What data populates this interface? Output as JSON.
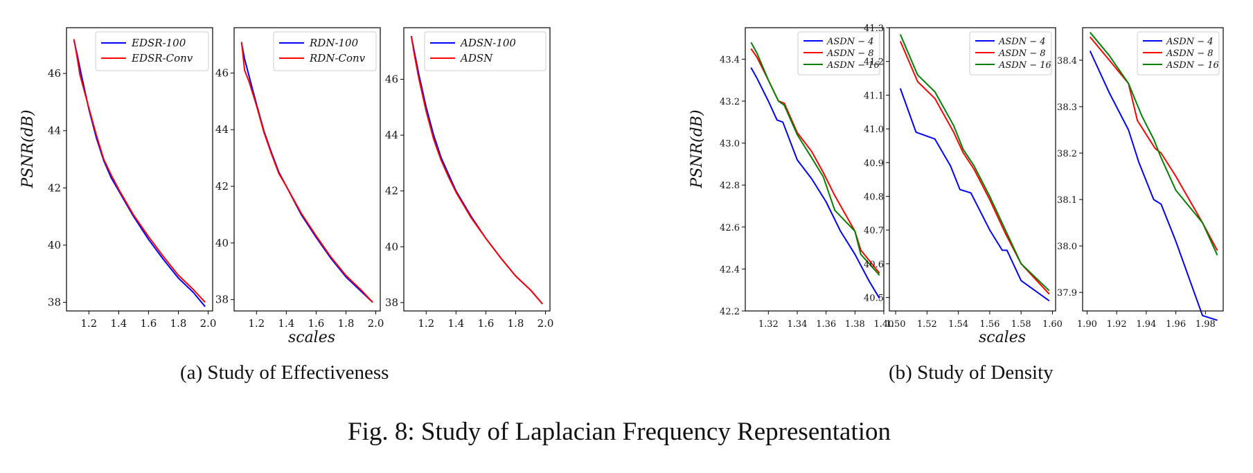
{
  "figure": {
    "caption": "Fig. 8: Study of Laplacian Frequency Representation",
    "subcaption_a": "(a) Study of Effectiveness",
    "subcaption_b": "(b) Study of Density",
    "ylabel_a": "PSNR(dB)",
    "ylabel_b": "PSNR(dB)",
    "xlabel_a": "scales",
    "xlabel_b": "scales"
  },
  "chart_data": [
    {
      "type": "line",
      "group": "a",
      "panel": 1,
      "xlim": [
        1.05,
        2.03
      ],
      "ylim": [
        37.7,
        47.6
      ],
      "xticks": [
        1.2,
        1.4,
        1.6,
        1.8,
        2.0
      ],
      "xtick_labels": [
        "1.2",
        "1.4",
        "1.6",
        "1.8",
        "2.0"
      ],
      "yticks": [
        38,
        40,
        42,
        44,
        46
      ],
      "ytick_labels": [
        "38",
        "40",
        "42",
        "44",
        "46"
      ],
      "legend_position": "top-right",
      "grid": false,
      "series": [
        {
          "name": "EDSR-100",
          "color": "#0000ff",
          "x": [
            1.1,
            1.12,
            1.15,
            1.2,
            1.25,
            1.3,
            1.35,
            1.4,
            1.5,
            1.6,
            1.7,
            1.8,
            1.9,
            1.98
          ],
          "y": [
            47.15,
            46.7,
            45.95,
            44.75,
            43.75,
            42.95,
            42.35,
            41.9,
            41.0,
            40.2,
            39.5,
            38.85,
            38.35,
            37.85
          ]
        },
        {
          "name": "EDSR-Conv",
          "color": "#ff0000",
          "x": [
            1.1,
            1.12,
            1.14,
            1.2,
            1.25,
            1.3,
            1.35,
            1.4,
            1.5,
            1.6,
            1.7,
            1.8,
            1.9,
            1.98
          ],
          "y": [
            47.2,
            46.6,
            45.95,
            44.8,
            43.85,
            43.0,
            42.45,
            41.95,
            41.05,
            40.3,
            39.6,
            38.95,
            38.45,
            38.0
          ]
        }
      ]
    },
    {
      "type": "line",
      "group": "a",
      "panel": 2,
      "xlim": [
        1.05,
        2.03
      ],
      "ylim": [
        37.6,
        47.6
      ],
      "xticks": [
        1.2,
        1.4,
        1.6,
        1.8,
        2.0
      ],
      "xtick_labels": [
        "1.2",
        "1.4",
        "1.6",
        "1.8",
        "2.0"
      ],
      "yticks": [
        38,
        40,
        42,
        44,
        46
      ],
      "ytick_labels": [
        "38",
        "40",
        "42",
        "44",
        "46"
      ],
      "legend_position": "top-right",
      "grid": false,
      "series": [
        {
          "name": "RDN-100",
          "color": "#0000ff",
          "x": [
            1.1,
            1.12,
            1.15,
            1.2,
            1.25,
            1.3,
            1.35,
            1.4,
            1.5,
            1.6,
            1.7,
            1.8,
            1.9,
            1.98
          ],
          "y": [
            47.05,
            46.5,
            45.9,
            44.9,
            43.95,
            43.2,
            42.5,
            42.0,
            41.0,
            40.2,
            39.45,
            38.8,
            38.3,
            37.9
          ]
        },
        {
          "name": "RDN-Conv",
          "color": "#ff0000",
          "x": [
            1.1,
            1.12,
            1.15,
            1.2,
            1.25,
            1.3,
            1.35,
            1.4,
            1.5,
            1.6,
            1.7,
            1.8,
            1.9,
            1.98
          ],
          "y": [
            47.1,
            46.1,
            45.7,
            44.85,
            43.9,
            43.15,
            42.45,
            42.0,
            41.05,
            40.25,
            39.5,
            38.85,
            38.35,
            37.9
          ]
        }
      ]
    },
    {
      "type": "line",
      "group": "a",
      "panel": 3,
      "xlim": [
        1.05,
        2.03
      ],
      "ylim": [
        37.7,
        47.85
      ],
      "xticks": [
        1.2,
        1.4,
        1.6,
        1.8,
        2.0
      ],
      "xtick_labels": [
        "1.2",
        "1.4",
        "1.6",
        "1.8",
        "2.0"
      ],
      "yticks": [
        38,
        40,
        42,
        44,
        46
      ],
      "ytick_labels": [
        "38",
        "40",
        "42",
        "44",
        "46"
      ],
      "legend_position": "top-right",
      "grid": false,
      "series": [
        {
          "name": "ADSN-100",
          "color": "#0000ff",
          "x": [
            1.1,
            1.12,
            1.15,
            1.2,
            1.25,
            1.3,
            1.35,
            1.4,
            1.5,
            1.6,
            1.7,
            1.8,
            1.9,
            1.98
          ],
          "y": [
            47.55,
            47.0,
            46.2,
            45.0,
            44.0,
            43.2,
            42.6,
            42.0,
            41.1,
            40.3,
            39.6,
            38.95,
            38.45,
            37.95
          ]
        },
        {
          "name": "ADSN",
          "color": "#ff0000",
          "x": [
            1.1,
            1.12,
            1.15,
            1.2,
            1.25,
            1.3,
            1.35,
            1.4,
            1.5,
            1.6,
            1.7,
            1.8,
            1.9,
            1.98
          ],
          "y": [
            47.55,
            46.9,
            46.05,
            44.85,
            43.85,
            43.1,
            42.5,
            41.95,
            41.05,
            40.3,
            39.6,
            38.95,
            38.45,
            37.95
          ]
        }
      ]
    },
    {
      "type": "line",
      "group": "b",
      "panel": 1,
      "xlim": [
        1.304,
        1.4
      ],
      "ylim": [
        42.2,
        43.55
      ],
      "xticks": [
        1.32,
        1.34,
        1.36,
        1.38,
        1.4
      ],
      "xtick_labels": [
        "1.32",
        "1.34",
        "1.36",
        "1.38",
        "1.40"
      ],
      "yticks": [
        42.2,
        42.4,
        42.6,
        42.8,
        43.0,
        43.2,
        43.4
      ],
      "ytick_labels": [
        "42.2",
        "42.4",
        "42.6",
        "42.8",
        "43.0",
        "43.2",
        "43.4"
      ],
      "legend_position": "top-right",
      "grid": false,
      "series": [
        {
          "name": "ASDN − 4",
          "color": "#0000ff",
          "x": [
            1.308,
            1.312,
            1.32,
            1.326,
            1.33,
            1.34,
            1.35,
            1.36,
            1.37,
            1.38,
            1.39,
            1.397
          ],
          "y": [
            43.36,
            43.31,
            43.2,
            43.11,
            43.1,
            42.92,
            42.83,
            42.72,
            42.58,
            42.47,
            42.34,
            42.26
          ]
        },
        {
          "name": "ASDN − 8",
          "color": "#ff0000",
          "x": [
            1.308,
            1.312,
            1.32,
            1.327,
            1.331,
            1.34,
            1.35,
            1.358,
            1.366,
            1.38,
            1.384,
            1.397
          ],
          "y": [
            43.45,
            43.41,
            43.3,
            43.2,
            43.19,
            43.05,
            42.96,
            42.86,
            42.75,
            42.58,
            42.49,
            42.38
          ]
        },
        {
          "name": "ASDN − 16",
          "color": "#008000",
          "x": [
            1.308,
            1.312,
            1.32,
            1.327,
            1.331,
            1.34,
            1.35,
            1.358,
            1.366,
            1.38,
            1.384,
            1.397
          ],
          "y": [
            43.48,
            43.43,
            43.3,
            43.2,
            43.18,
            43.04,
            42.93,
            42.84,
            42.68,
            42.58,
            42.47,
            42.37
          ]
        }
      ]
    },
    {
      "type": "line",
      "group": "b",
      "panel": 2,
      "xlim": [
        1.496,
        1.602
      ],
      "ylim": [
        40.46,
        41.3
      ],
      "xticks": [
        1.5,
        1.52,
        1.54,
        1.56,
        1.58,
        1.6
      ],
      "xtick_labels": [
        "1.50",
        "1.52",
        "1.54",
        "1.56",
        "1.58",
        "1.60"
      ],
      "yticks": [
        40.5,
        40.6,
        40.7,
        40.8,
        40.9,
        41.0,
        41.1,
        41.2,
        41.3
      ],
      "ytick_labels": [
        "40.5",
        "40.6",
        "40.7",
        "40.8",
        "40.9",
        "41.0",
        "41.1",
        "41.2",
        "41.3"
      ],
      "legend_position": "top-right",
      "grid": false,
      "series": [
        {
          "name": "ASDN − 4",
          "color": "#0000ff",
          "x": [
            1.503,
            1.513,
            1.525,
            1.535,
            1.541,
            1.548,
            1.56,
            1.568,
            1.571,
            1.58,
            1.598
          ],
          "y": [
            41.12,
            40.99,
            40.97,
            40.89,
            40.82,
            40.81,
            40.7,
            40.64,
            40.64,
            40.55,
            40.49
          ]
        },
        {
          "name": "ASDN − 8",
          "color": "#ff0000",
          "x": [
            1.503,
            1.514,
            1.525,
            1.537,
            1.543,
            1.55,
            1.56,
            1.57,
            1.58,
            1.598
          ],
          "y": [
            41.26,
            41.14,
            41.09,
            40.99,
            40.93,
            40.88,
            40.79,
            40.69,
            40.6,
            40.51
          ]
        },
        {
          "name": "ASDN − 16",
          "color": "#008000",
          "x": [
            1.503,
            1.514,
            1.525,
            1.537,
            1.543,
            1.55,
            1.56,
            1.57,
            1.58,
            1.598
          ],
          "y": [
            41.28,
            41.16,
            41.11,
            41.01,
            40.94,
            40.89,
            40.8,
            40.7,
            40.6,
            40.52
          ]
        }
      ]
    },
    {
      "type": "line",
      "group": "b",
      "panel": 3,
      "xlim": [
        1.897,
        1.992
      ],
      "ylim": [
        37.86,
        38.47
      ],
      "xticks": [
        1.9,
        1.92,
        1.94,
        1.96,
        1.98
      ],
      "xtick_labels": [
        "1.90",
        "1.92",
        "1.94",
        "1.96",
        "1.98"
      ],
      "yticks": [
        37.9,
        38.0,
        38.1,
        38.2,
        38.3,
        38.4
      ],
      "ytick_labels": [
        "37.9",
        "38.0",
        "38.1",
        "38.2",
        "38.3",
        "38.4"
      ],
      "legend_position": "top-right",
      "grid": false,
      "series": [
        {
          "name": "ASDN − 4",
          "color": "#0000ff",
          "x": [
            1.902,
            1.915,
            1.928,
            1.935,
            1.945,
            1.95,
            1.96,
            1.978,
            1.988
          ],
          "y": [
            38.42,
            38.33,
            38.25,
            38.18,
            38.1,
            38.09,
            38.01,
            37.85,
            37.84
          ]
        },
        {
          "name": "ASDN − 8",
          "color": "#ff0000",
          "x": [
            1.902,
            1.915,
            1.928,
            1.934,
            1.946,
            1.95,
            1.96,
            1.978,
            1.988
          ],
          "y": [
            38.45,
            38.4,
            38.35,
            38.27,
            38.21,
            38.2,
            38.15,
            38.05,
            37.99
          ]
        },
        {
          "name": "ASDN − 16",
          "color": "#008000",
          "x": [
            1.902,
            1.915,
            1.928,
            1.937,
            1.945,
            1.95,
            1.96,
            1.978,
            1.988
          ],
          "y": [
            38.46,
            38.41,
            38.35,
            38.28,
            38.23,
            38.19,
            38.12,
            38.05,
            37.98
          ]
        }
      ]
    }
  ]
}
